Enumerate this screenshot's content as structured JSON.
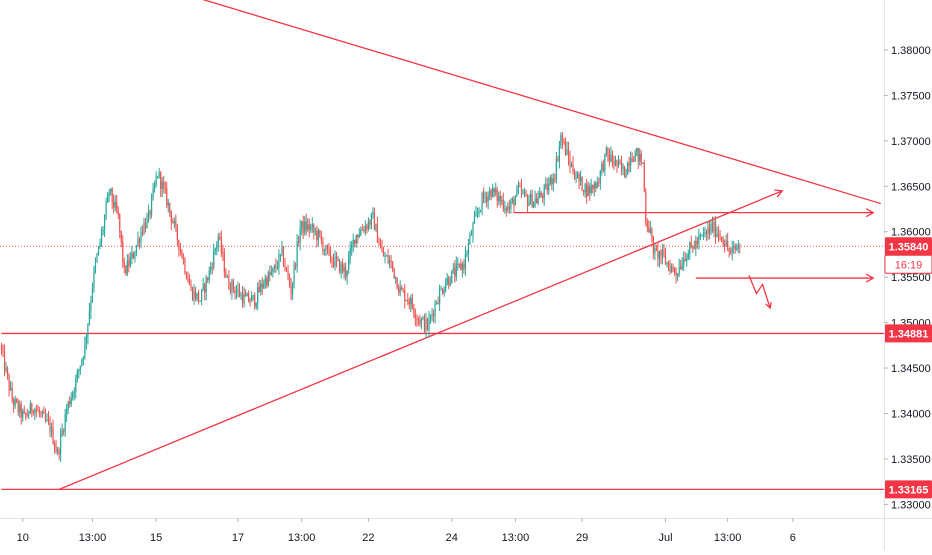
{
  "chart_data": {
    "type": "candlestick",
    "symbol_precision": 5,
    "ylim": [
      1.3285,
      1.3855
    ],
    "y_ticks": [
      {
        "value": 1.38,
        "label": "1.38000"
      },
      {
        "value": 1.375,
        "label": "1.37500"
      },
      {
        "value": 1.37,
        "label": "1.37000"
      },
      {
        "value": 1.365,
        "label": "1.36500"
      },
      {
        "value": 1.36,
        "label": "1.36000"
      },
      {
        "value": 1.355,
        "label": "1.35500"
      },
      {
        "value": 1.35,
        "label": "1.35000"
      },
      {
        "value": 1.345,
        "label": "1.34500"
      },
      {
        "value": 1.34,
        "label": "1.34000"
      },
      {
        "value": 1.335,
        "label": "1.33500"
      },
      {
        "value": 1.33,
        "label": "1.33000"
      }
    ],
    "x_ticks": [
      {
        "bar": 14,
        "label": "10"
      },
      {
        "bar": 60,
        "label": "13:00"
      },
      {
        "bar": 102,
        "label": "15"
      },
      {
        "bar": 156,
        "label": "17"
      },
      {
        "bar": 198,
        "label": "13:00"
      },
      {
        "bar": 242,
        "label": "22"
      },
      {
        "bar": 297,
        "label": "24"
      },
      {
        "bar": 339,
        "label": "13:00"
      },
      {
        "bar": 383,
        "label": "29"
      },
      {
        "bar": 438,
        "label": "Jul"
      },
      {
        "bar": 479,
        "label": "13:00"
      },
      {
        "bar": 522,
        "label": "6"
      }
    ],
    "bar_count": 578,
    "last_bar": 487,
    "anchors": [
      [
        0,
        1.3475
      ],
      [
        8,
        1.3415
      ],
      [
        16,
        1.3395
      ],
      [
        22,
        1.3408
      ],
      [
        28,
        1.3395
      ],
      [
        33,
        1.3385
      ],
      [
        38,
        1.3355
      ],
      [
        44,
        1.3405
      ],
      [
        50,
        1.3435
      ],
      [
        56,
        1.3475
      ],
      [
        62,
        1.3555
      ],
      [
        68,
        1.3605
      ],
      [
        72,
        1.3645
      ],
      [
        78,
        1.3615
      ],
      [
        82,
        1.3555
      ],
      [
        88,
        1.3575
      ],
      [
        94,
        1.3605
      ],
      [
        98,
        1.3615
      ],
      [
        104,
        1.3665
      ],
      [
        110,
        1.3635
      ],
      [
        115,
        1.3605
      ],
      [
        120,
        1.3575
      ],
      [
        126,
        1.3535
      ],
      [
        132,
        1.3525
      ],
      [
        138,
        1.3555
      ],
      [
        144,
        1.3595
      ],
      [
        150,
        1.3545
      ],
      [
        156,
        1.3535
      ],
      [
        162,
        1.3525
      ],
      [
        168,
        1.3525
      ],
      [
        174,
        1.3545
      ],
      [
        180,
        1.3555
      ],
      [
        186,
        1.3575
      ],
      [
        192,
        1.3535
      ],
      [
        198,
        1.3605
      ],
      [
        204,
        1.3605
      ],
      [
        210,
        1.3595
      ],
      [
        216,
        1.3575
      ],
      [
        222,
        1.3565
      ],
      [
        228,
        1.3555
      ],
      [
        234,
        1.3595
      ],
      [
        240,
        1.3605
      ],
      [
        246,
        1.3615
      ],
      [
        252,
        1.3575
      ],
      [
        258,
        1.3565
      ],
      [
        264,
        1.3535
      ],
      [
        270,
        1.3525
      ],
      [
        276,
        1.3505
      ],
      [
        282,
        1.3495
      ],
      [
        288,
        1.3525
      ],
      [
        294,
        1.3545
      ],
      [
        300,
        1.3555
      ],
      [
        306,
        1.3565
      ],
      [
        312,
        1.3605
      ],
      [
        318,
        1.3635
      ],
      [
        324,
        1.3645
      ],
      [
        330,
        1.3635
      ],
      [
        336,
        1.3625
      ],
      [
        342,
        1.3645
      ],
      [
        348,
        1.3635
      ],
      [
        354,
        1.3635
      ],
      [
        360,
        1.3645
      ],
      [
        366,
        1.3665
      ],
      [
        370,
        1.3705
      ],
      [
        376,
        1.3675
      ],
      [
        382,
        1.3655
      ],
      [
        388,
        1.3645
      ],
      [
        394,
        1.3655
      ],
      [
        400,
        1.3685
      ],
      [
        406,
        1.3675
      ],
      [
        412,
        1.3665
      ],
      [
        416,
        1.3685
      ],
      [
        420,
        1.3685
      ],
      [
        424,
        1.3675
      ],
      [
        426,
        1.3615
      ],
      [
        428,
        1.3605
      ],
      [
        432,
        1.3575
      ],
      [
        436,
        1.3575
      ],
      [
        440,
        1.3565
      ],
      [
        446,
        1.3555
      ],
      [
        452,
        1.3575
      ],
      [
        458,
        1.3585
      ],
      [
        464,
        1.3595
      ],
      [
        470,
        1.3605
      ],
      [
        476,
        1.3595
      ],
      [
        482,
        1.3575
      ],
      [
        487,
        1.3584
      ]
    ],
    "levels": [
      {
        "name": "support-1",
        "value": 1.34881,
        "label": "1.34881",
        "start_bar": 0
      },
      {
        "name": "support-2",
        "value": 1.33165,
        "label": "1.33165",
        "start_bar": 0
      },
      {
        "name": "resistance-range-top",
        "value": 1.3621,
        "start_bar": 338,
        "end_bar": 575,
        "arrow": true
      },
      {
        "name": "range-bottom",
        "value": 1.3549,
        "start_bar": 458,
        "end_bar": 575,
        "arrow": true
      }
    ],
    "trendlines": [
      {
        "name": "descending-trendline",
        "p1": [
          120,
          1.3862
        ],
        "p2": [
          580,
          1.3631
        ]
      },
      {
        "name": "ascending-trendline",
        "p1": [
          38,
          1.33165
        ],
        "p2": [
          515,
          1.3645
        ],
        "arrow": true
      }
    ],
    "projection": {
      "name": "breakdown-projection",
      "points": [
        [
          493,
          1.3552
        ],
        [
          498,
          1.3532
        ],
        [
          502,
          1.3542
        ],
        [
          507,
          1.3516
        ]
      ]
    },
    "current_price": {
      "value": 1.3584,
      "label": "1.35840",
      "countdown": "16:19"
    },
    "colors": {
      "up": "#26a69a",
      "down": "#ef5350",
      "drawing": "#f23645",
      "price_line": "#ef5350",
      "axis_text": "#131722",
      "axis_border": "#e0e3eb",
      "badge_text": "#ffffff"
    }
  }
}
